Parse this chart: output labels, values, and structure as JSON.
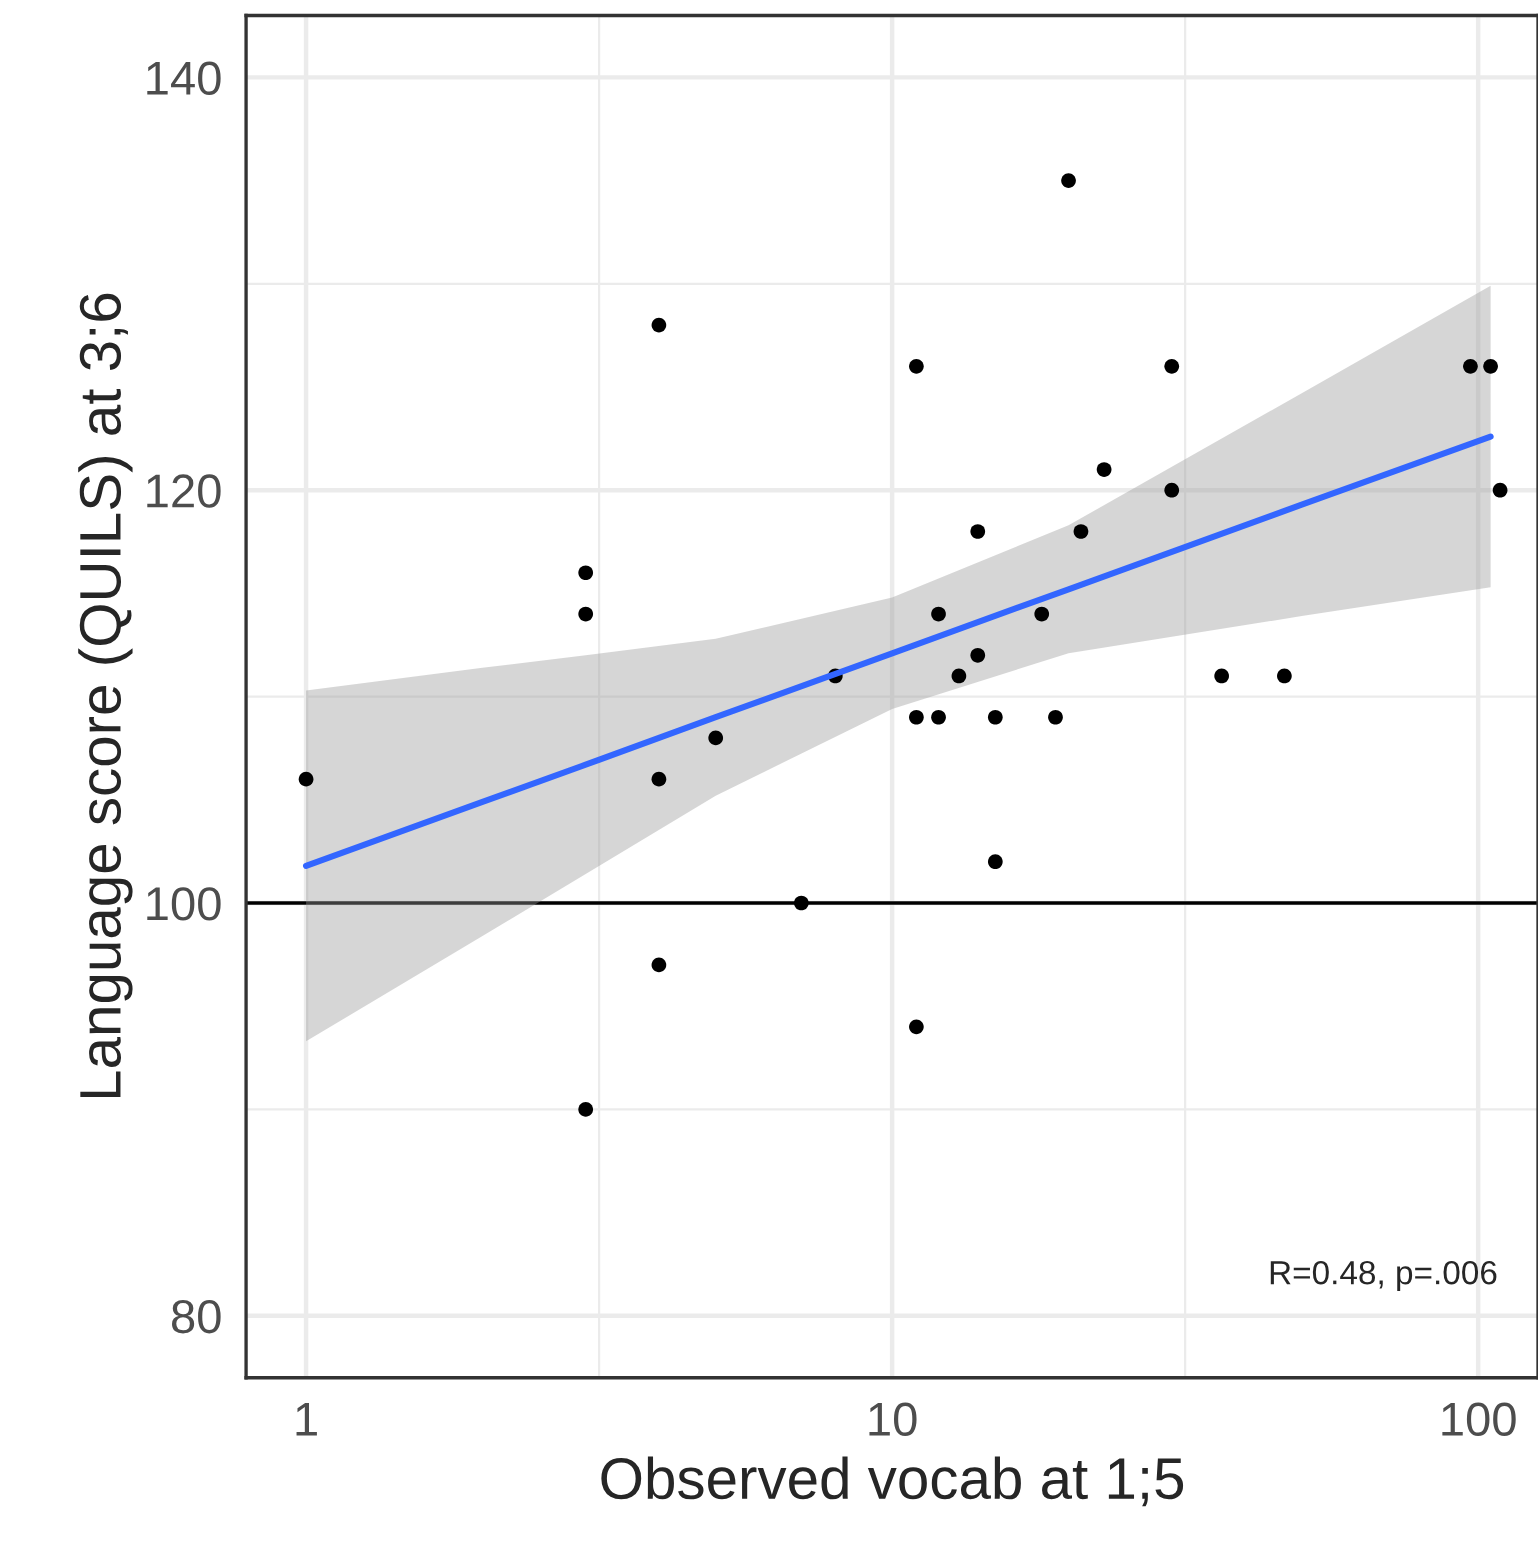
{
  "chart_data": {
    "type": "scatter",
    "xlabel": "Observed vocab at 1;5",
    "ylabel": "Language score (QUILS) at 3;6",
    "log": "x",
    "xlim": [
      0.79,
      126.5
    ],
    "ylim": [
      77,
      143
    ],
    "xticks": [
      1,
      10,
      100
    ],
    "yticks": [
      80,
      100,
      120,
      140
    ],
    "grid": true,
    "series": [
      {
        "color": "#000000",
        "marker": "circle",
        "x": [
          1,
          3,
          3,
          3,
          4,
          4,
          4,
          5,
          7,
          8,
          11,
          11,
          11,
          12,
          12,
          13,
          14,
          14,
          15,
          15,
          18,
          19,
          20,
          21,
          23,
          30,
          30,
          36.5,
          46.7,
          97,
          105,
          109
        ],
        "values": [
          106,
          116,
          114,
          90,
          128,
          106,
          97,
          108,
          100,
          111,
          126,
          109,
          94,
          114,
          109,
          111,
          118,
          112,
          109,
          102,
          114,
          109,
          135,
          118,
          121,
          126,
          120,
          111,
          111,
          126,
          126,
          120
        ]
      },
      {
        "type": "line",
        "color": "#3366ff",
        "x": [
          1,
          2,
          3,
          5,
          10,
          20,
          50,
          105
        ],
        "values": [
          101.8,
          104.9,
          106.7,
          109.0,
          112.1,
          115.2,
          119.3,
          122.6
        ],
        "lower": [
          93.3,
          98.4,
          101.4,
          105.2,
          109.4,
          112.1,
          113.9,
          115.3
        ],
        "upper": [
          110.3,
          111.4,
          112.0,
          112.8,
          114.8,
          118.3,
          124.7,
          129.9
        ]
      }
    ],
    "ref_lines": [
      {
        "axis": "y",
        "value": 100,
        "color": "#000000"
      }
    ],
    "annotations": [
      "R=0.48, p=.006"
    ]
  }
}
